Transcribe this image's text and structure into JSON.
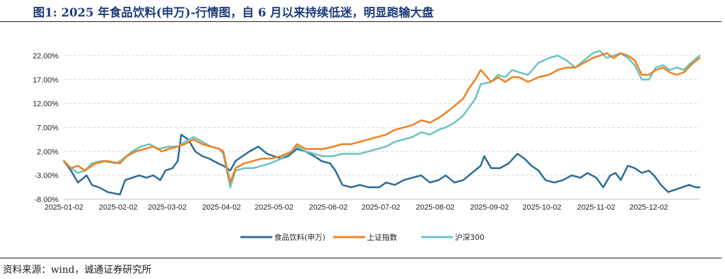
{
  "header": {
    "figure_title": "图1:    2025 年食品饮料(申万)-行情图，自 6 月以来持续低迷，明显跑输大盘"
  },
  "footer": {
    "source": "资料来源：wind，诚通证券研究所"
  },
  "chart_data": {
    "type": "line",
    "title": "",
    "xlabel": "",
    "ylabel": "",
    "ylim": [
      -8,
      25
    ],
    "y_ticks": [
      "22.00%",
      "17.00%",
      "12.00%",
      "7.00%",
      "2.00%",
      "-3.00%",
      "-8.00%"
    ],
    "y_tick_values": [
      22,
      17,
      12,
      7,
      2,
      -3,
      -8
    ],
    "x_ticks": [
      "2025-01-02",
      "2025-02-02",
      "2025-03-02",
      "2025-04-02",
      "2025-05-02",
      "2025-06-02",
      "2025-07-02",
      "2025-08-02",
      "2025-09-02",
      "2025-10-02",
      "2025-11-02",
      "2025-12-02"
    ],
    "x_range": [
      "2025-01-02",
      "2025-12-31"
    ],
    "grid": "horizontal dashed",
    "legend_position": "bottom",
    "series": [
      {
        "name": "食品饮料(申万)",
        "color": "#2e6e96",
        "points": [
          [
            "2025-01-02",
            0
          ],
          [
            "2025-01-06",
            -2
          ],
          [
            "2025-01-10",
            -4.5
          ],
          [
            "2025-01-15",
            -3
          ],
          [
            "2025-01-18",
            -5
          ],
          [
            "2025-01-22",
            -5.5
          ],
          [
            "2025-01-27",
            -6.5
          ],
          [
            "2025-02-03",
            -7
          ],
          [
            "2025-02-06",
            -4
          ],
          [
            "2025-02-10",
            -3.5
          ],
          [
            "2025-02-14",
            -3
          ],
          [
            "2025-02-18",
            -3.5
          ],
          [
            "2025-02-22",
            -3
          ],
          [
            "2025-02-26",
            -4
          ],
          [
            "2025-03-01",
            -2
          ],
          [
            "2025-03-05",
            -1.5
          ],
          [
            "2025-03-08",
            0
          ],
          [
            "2025-03-10",
            5.5
          ],
          [
            "2025-03-14",
            4.5
          ],
          [
            "2025-03-18",
            2
          ],
          [
            "2025-03-22",
            1
          ],
          [
            "2025-03-26",
            0.5
          ],
          [
            "2025-03-31",
            -0.5
          ],
          [
            "2025-04-03",
            -1
          ],
          [
            "2025-04-07",
            -2
          ],
          [
            "2025-04-10",
            0
          ],
          [
            "2025-04-14",
            1
          ],
          [
            "2025-04-18",
            2
          ],
          [
            "2025-04-23",
            3
          ],
          [
            "2025-04-28",
            1.5
          ],
          [
            "2025-05-06",
            0.5
          ],
          [
            "2025-05-10",
            1
          ],
          [
            "2025-05-15",
            2.5
          ],
          [
            "2025-05-20",
            2
          ],
          [
            "2025-05-25",
            1
          ],
          [
            "2025-05-29",
            0
          ],
          [
            "2025-06-03",
            -0.5
          ],
          [
            "2025-06-06",
            -2
          ],
          [
            "2025-06-10",
            -5
          ],
          [
            "2025-06-15",
            -5.5
          ],
          [
            "2025-06-20",
            -5
          ],
          [
            "2025-06-25",
            -5.5
          ],
          [
            "2025-07-01",
            -5.5
          ],
          [
            "2025-07-05",
            -4.5
          ],
          [
            "2025-07-10",
            -5
          ],
          [
            "2025-07-15",
            -4
          ],
          [
            "2025-07-20",
            -3.5
          ],
          [
            "2025-07-25",
            -3
          ],
          [
            "2025-07-30",
            -4.5
          ],
          [
            "2025-08-04",
            -4
          ],
          [
            "2025-08-08",
            -3
          ],
          [
            "2025-08-13",
            -4.5
          ],
          [
            "2025-08-18",
            -4
          ],
          [
            "2025-08-23",
            -2.5
          ],
          [
            "2025-08-28",
            -1
          ],
          [
            "2025-08-30",
            1
          ],
          [
            "2025-09-03",
            -1.5
          ],
          [
            "2025-09-08",
            -1.5
          ],
          [
            "2025-09-13",
            -0.5
          ],
          [
            "2025-09-18",
            1.5
          ],
          [
            "2025-09-22",
            0.5
          ],
          [
            "2025-09-26",
            -1
          ],
          [
            "2025-09-30",
            -2
          ],
          [
            "2025-10-04",
            -4
          ],
          [
            "2025-10-09",
            -4.5
          ],
          [
            "2025-10-14",
            -4
          ],
          [
            "2025-10-19",
            -3
          ],
          [
            "2025-10-24",
            -3.5
          ],
          [
            "2025-10-28",
            -2.5
          ],
          [
            "2025-11-02",
            -3.5
          ],
          [
            "2025-11-06",
            -5.5
          ],
          [
            "2025-11-10",
            -3
          ],
          [
            "2025-11-13",
            -2.5
          ],
          [
            "2025-11-16",
            -4
          ],
          [
            "2025-11-20",
            -1
          ],
          [
            "2025-11-24",
            -1.5
          ],
          [
            "2025-11-28",
            -2.5
          ],
          [
            "2025-12-02",
            -2
          ],
          [
            "2025-12-05",
            -3
          ],
          [
            "2025-12-09",
            -5
          ],
          [
            "2025-12-13",
            -6.5
          ],
          [
            "2025-12-17",
            -6
          ],
          [
            "2025-12-21",
            -5.5
          ],
          [
            "2025-12-25",
            -5
          ],
          [
            "2025-12-29",
            -5.5
          ],
          [
            "2025-12-31",
            -5.5
          ]
        ]
      },
      {
        "name": "上证指数",
        "color": "#ef8220",
        "points": [
          [
            "2025-01-02",
            0
          ],
          [
            "2025-01-06",
            -1.5
          ],
          [
            "2025-01-10",
            -1
          ],
          [
            "2025-01-14",
            -2
          ],
          [
            "2025-01-20",
            -0.5
          ],
          [
            "2025-01-26",
            0
          ],
          [
            "2025-02-03",
            -0.5
          ],
          [
            "2025-02-07",
            1
          ],
          [
            "2025-02-12",
            2
          ],
          [
            "2025-02-17",
            2.5
          ],
          [
            "2025-02-22",
            3
          ],
          [
            "2025-02-27",
            2
          ],
          [
            "2025-03-03",
            2.5
          ],
          [
            "2025-03-08",
            3
          ],
          [
            "2025-03-12",
            3.5
          ],
          [
            "2025-03-17",
            4.5
          ],
          [
            "2025-03-22",
            3.5
          ],
          [
            "2025-03-27",
            3
          ],
          [
            "2025-04-01",
            2.5
          ],
          [
            "2025-04-03",
            2
          ],
          [
            "2025-04-07",
            -4.5
          ],
          [
            "2025-04-10",
            -1.5
          ],
          [
            "2025-04-15",
            -0.5
          ],
          [
            "2025-04-20",
            0
          ],
          [
            "2025-04-25",
            0.5
          ],
          [
            "2025-04-30",
            0.5
          ],
          [
            "2025-05-06",
            1
          ],
          [
            "2025-05-12",
            2
          ],
          [
            "2025-05-15",
            3.5
          ],
          [
            "2025-05-20",
            2.5
          ],
          [
            "2025-05-25",
            2.5
          ],
          [
            "2025-05-30",
            2.5
          ],
          [
            "2025-06-05",
            3
          ],
          [
            "2025-06-10",
            3.5
          ],
          [
            "2025-06-15",
            3.5
          ],
          [
            "2025-06-20",
            4
          ],
          [
            "2025-06-25",
            4.5
          ],
          [
            "2025-06-30",
            5
          ],
          [
            "2025-07-05",
            5.5
          ],
          [
            "2025-07-10",
            6.5
          ],
          [
            "2025-07-15",
            7
          ],
          [
            "2025-07-20",
            7.5
          ],
          [
            "2025-07-25",
            8.5
          ],
          [
            "2025-07-30",
            8
          ],
          [
            "2025-08-04",
            9
          ],
          [
            "2025-08-08",
            10
          ],
          [
            "2025-08-13",
            11.5
          ],
          [
            "2025-08-18",
            13
          ],
          [
            "2025-08-21",
            15
          ],
          [
            "2025-08-25",
            17
          ],
          [
            "2025-08-28",
            19
          ],
          [
            "2025-09-03",
            16.5
          ],
          [
            "2025-09-07",
            17.5
          ],
          [
            "2025-09-11",
            16.5
          ],
          [
            "2025-09-15",
            17.5
          ],
          [
            "2025-09-19",
            17.5
          ],
          [
            "2025-09-24",
            16.5
          ],
          [
            "2025-09-30",
            17.5
          ],
          [
            "2025-10-06",
            18
          ],
          [
            "2025-10-11",
            19
          ],
          [
            "2025-10-16",
            19.5
          ],
          [
            "2025-10-21",
            19.5
          ],
          [
            "2025-10-26",
            20.5
          ],
          [
            "2025-10-31",
            21.5
          ],
          [
            "2025-11-04",
            22
          ],
          [
            "2025-11-08",
            22.5
          ],
          [
            "2025-11-12",
            21.5
          ],
          [
            "2025-11-16",
            22.5
          ],
          [
            "2025-11-20",
            22
          ],
          [
            "2025-11-24",
            21
          ],
          [
            "2025-11-28",
            18
          ],
          [
            "2025-12-02",
            18
          ],
          [
            "2025-12-06",
            19
          ],
          [
            "2025-12-10",
            19.5
          ],
          [
            "2025-12-14",
            18.5
          ],
          [
            "2025-12-18",
            18
          ],
          [
            "2025-12-22",
            18.5
          ],
          [
            "2025-12-26",
            20
          ],
          [
            "2025-12-31",
            21.5
          ]
        ]
      },
      {
        "name": "沪深300",
        "color": "#6fc2c2",
        "points": [
          [
            "2025-01-02",
            0
          ],
          [
            "2025-01-06",
            -1.5
          ],
          [
            "2025-01-10",
            -2.5
          ],
          [
            "2025-01-14",
            -2
          ],
          [
            "2025-01-18",
            -0.5
          ],
          [
            "2025-01-24",
            0
          ],
          [
            "2025-02-01",
            -0.5
          ],
          [
            "2025-02-05",
            0.5
          ],
          [
            "2025-02-10",
            2
          ],
          [
            "2025-02-15",
            3
          ],
          [
            "2025-02-20",
            3.5
          ],
          [
            "2025-02-25",
            2.5
          ],
          [
            "2025-03-03",
            3
          ],
          [
            "2025-03-08",
            3
          ],
          [
            "2025-03-12",
            4
          ],
          [
            "2025-03-17",
            5
          ],
          [
            "2025-03-22",
            4
          ],
          [
            "2025-03-27",
            3
          ],
          [
            "2025-04-01",
            2.5
          ],
          [
            "2025-04-03",
            1.5
          ],
          [
            "2025-04-07",
            -5.5
          ],
          [
            "2025-04-10",
            -2
          ],
          [
            "2025-04-15",
            -1.5
          ],
          [
            "2025-04-20",
            -1.5
          ],
          [
            "2025-04-25",
            -1
          ],
          [
            "2025-04-30",
            -0.5
          ],
          [
            "2025-05-06",
            0.5
          ],
          [
            "2025-05-12",
            2
          ],
          [
            "2025-05-15",
            3
          ],
          [
            "2025-05-20",
            2
          ],
          [
            "2025-05-25",
            1.5
          ],
          [
            "2025-05-30",
            1
          ],
          [
            "2025-06-05",
            1
          ],
          [
            "2025-06-10",
            1.5
          ],
          [
            "2025-06-15",
            1.5
          ],
          [
            "2025-06-20",
            1.5
          ],
          [
            "2025-06-25",
            2
          ],
          [
            "2025-06-30",
            2.5
          ],
          [
            "2025-07-05",
            3
          ],
          [
            "2025-07-10",
            4
          ],
          [
            "2025-07-15",
            4.5
          ],
          [
            "2025-07-20",
            5
          ],
          [
            "2025-07-25",
            6
          ],
          [
            "2025-07-30",
            5.5
          ],
          [
            "2025-08-04",
            6.5
          ],
          [
            "2025-08-08",
            7
          ],
          [
            "2025-08-13",
            8
          ],
          [
            "2025-08-18",
            9.5
          ],
          [
            "2025-08-21",
            11
          ],
          [
            "2025-08-25",
            13
          ],
          [
            "2025-08-28",
            16
          ],
          [
            "2025-09-03",
            16.5
          ],
          [
            "2025-09-07",
            18
          ],
          [
            "2025-09-11",
            17.5
          ],
          [
            "2025-09-15",
            19
          ],
          [
            "2025-09-19",
            18.5
          ],
          [
            "2025-09-24",
            18
          ],
          [
            "2025-09-30",
            20.5
          ],
          [
            "2025-10-06",
            21.5
          ],
          [
            "2025-10-11",
            22
          ],
          [
            "2025-10-16",
            21
          ],
          [
            "2025-10-21",
            19.5
          ],
          [
            "2025-10-26",
            21
          ],
          [
            "2025-10-31",
            22.5
          ],
          [
            "2025-11-04",
            23
          ],
          [
            "2025-11-08",
            21.5
          ],
          [
            "2025-11-12",
            22
          ],
          [
            "2025-11-16",
            22.5
          ],
          [
            "2025-11-20",
            21.5
          ],
          [
            "2025-11-24",
            20
          ],
          [
            "2025-11-28",
            17
          ],
          [
            "2025-12-02",
            17
          ],
          [
            "2025-12-06",
            19.5
          ],
          [
            "2025-12-10",
            20
          ],
          [
            "2025-12-14",
            19
          ],
          [
            "2025-12-18",
            19.5
          ],
          [
            "2025-12-22",
            19
          ],
          [
            "2025-12-26",
            20.5
          ],
          [
            "2025-12-31",
            22
          ]
        ]
      }
    ]
  }
}
